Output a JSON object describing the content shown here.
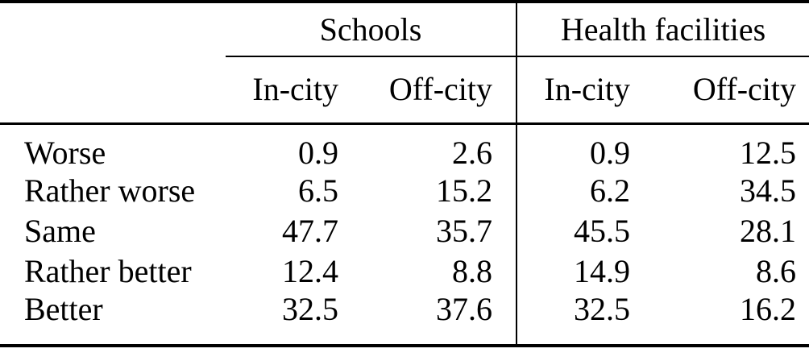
{
  "table": {
    "col_groups": [
      {
        "label": "Schools",
        "columns": [
          "In-city",
          "Off-city"
        ]
      },
      {
        "label": "Health facilities",
        "columns": [
          "In-city",
          "Off-city"
        ]
      }
    ],
    "rows": [
      {
        "label": "Worse",
        "values": [
          "0.9",
          "2.6",
          "0.9",
          "12.5"
        ]
      },
      {
        "label": "Rather worse",
        "values": [
          "6.5",
          "15.2",
          "6.2",
          "34.5"
        ]
      },
      {
        "label": "Same",
        "values": [
          "47.7",
          "35.7",
          "45.5",
          "28.1"
        ]
      },
      {
        "label": "Rather better",
        "values": [
          "12.4",
          "8.8",
          "14.9",
          "8.6"
        ]
      },
      {
        "label": "Better",
        "values": [
          "32.5",
          "37.6",
          "32.5",
          "16.2"
        ]
      }
    ]
  },
  "colors": {
    "text": "#000000",
    "rule": "#000000",
    "background": "#ffffff"
  }
}
